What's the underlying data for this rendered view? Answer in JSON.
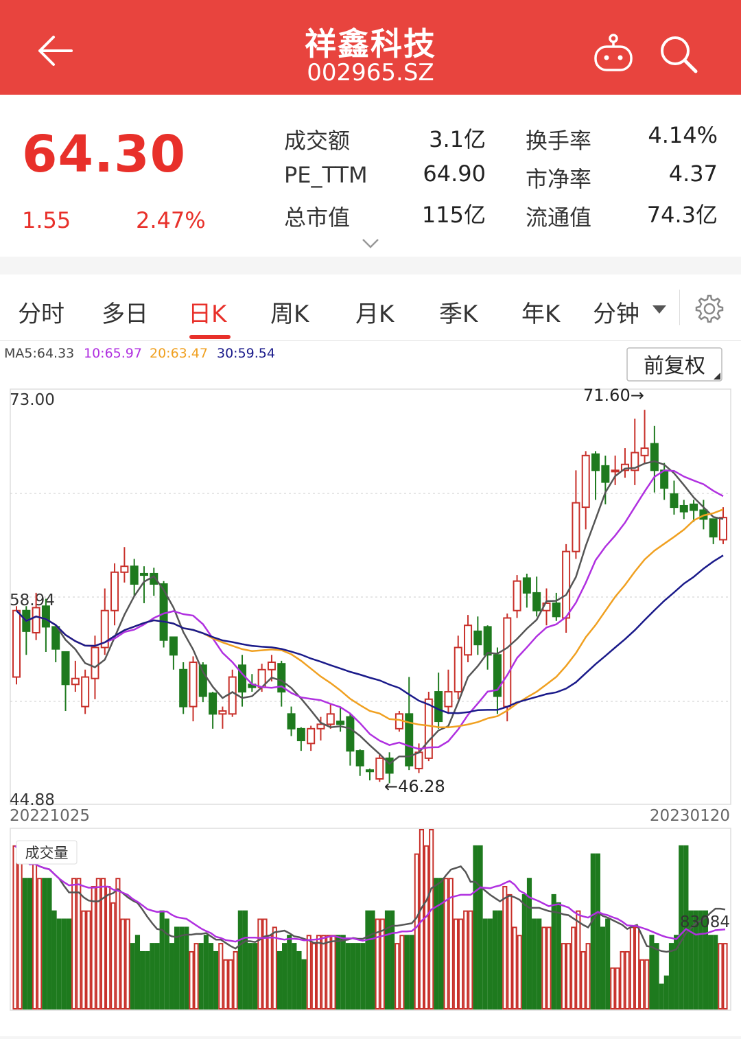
{
  "header": {
    "title": "祥鑫科技",
    "code": "002965.SZ"
  },
  "quote": {
    "price": "64.30",
    "change": "1.55",
    "change_pct": "2.47%",
    "stats": [
      {
        "label": "成交额",
        "value": "3.1亿"
      },
      {
        "label": "换手率",
        "value": "4.14%"
      },
      {
        "label": "PE_TTM",
        "value": "64.90"
      },
      {
        "label": "市净率",
        "value": "4.37"
      },
      {
        "label": "总市值",
        "value": "115亿"
      },
      {
        "label": "流通值",
        "value": "74.3亿"
      }
    ]
  },
  "tabs": [
    {
      "label": "分时"
    },
    {
      "label": "多日"
    },
    {
      "label": "日K"
    },
    {
      "label": "周K"
    },
    {
      "label": "月K"
    },
    {
      "label": "季K"
    },
    {
      "label": "年K"
    },
    {
      "label": "分钟"
    }
  ],
  "colors": {
    "up": "#c8302a",
    "down": "#1e7a1e",
    "ma5": "#555555",
    "ma10": "#b030e0",
    "ma20": "#f0a020",
    "ma30": "#1a1a8a"
  },
  "chart_data": {
    "type": "candlestick",
    "ma_legend": [
      {
        "label": "MA5:64.33",
        "color": "#444444"
      },
      {
        "label": "10:65.97",
        "color": "#b030e0"
      },
      {
        "label": "20:63.47",
        "color": "#f0a020"
      },
      {
        "label": "30:59.54",
        "color": "#1a1a8a"
      }
    ],
    "adjust_button": "前复权",
    "y_ticks": [
      "73.00",
      "58.94",
      "44.88"
    ],
    "ylim": [
      44.88,
      73.0
    ],
    "x_start": "20221025",
    "x_end": "20230120",
    "max_label": "71.60→",
    "min_label": "←46.28",
    "volume_title": "成交量",
    "volume_label": "83084",
    "candles": [
      [
        53.5,
        58.0,
        58.3,
        53.0
      ],
      [
        58.0,
        56.6,
        58.3,
        55.0
      ],
      [
        56.5,
        58.2,
        59.2,
        56.0
      ],
      [
        58.3,
        56.9,
        58.8,
        55.2
      ],
      [
        56.9,
        55.4,
        56.5,
        54.5
      ],
      [
        55.2,
        53.0,
        53.5,
        51.2
      ],
      [
        53.0,
        53.4,
        54.6,
        52.5
      ],
      [
        51.5,
        53.5,
        54.0,
        51.0
      ],
      [
        53.4,
        55.5,
        56.3,
        52.0
      ],
      [
        55.5,
        58.0,
        59.5,
        55.0
      ],
      [
        58.0,
        60.6,
        61.2,
        57.0
      ],
      [
        60.6,
        61.0,
        62.3,
        59.9
      ],
      [
        61.0,
        59.8,
        61.5,
        59.0
      ],
      [
        60.5,
        60.4,
        61.0,
        58.5
      ],
      [
        60.5,
        59.8,
        60.9,
        59.0
      ],
      [
        59.8,
        56.0,
        60.0,
        55.5
      ],
      [
        56.2,
        55.0,
        56.2,
        54.0
      ],
      [
        54.0,
        51.5,
        54.5,
        51.0
      ],
      [
        51.5,
        54.5,
        54.9,
        50.5
      ],
      [
        54.3,
        52.2,
        54.5,
        51.8
      ],
      [
        52.4,
        51.0,
        52.5,
        50.0
      ],
      [
        51.0,
        51.2,
        51.5,
        50.0
      ],
      [
        51.0,
        53.5,
        54.0,
        50.8
      ],
      [
        54.3,
        52.5,
        55.0,
        51.5
      ],
      [
        53.0,
        52.8,
        53.7,
        52.5
      ],
      [
        52.8,
        54.0,
        54.4,
        52.5
      ],
      [
        54.0,
        54.5,
        55.0,
        53.2
      ],
      [
        54.4,
        52.5,
        54.6,
        51.5
      ],
      [
        51.0,
        50.0,
        51.5,
        49.5
      ],
      [
        50.0,
        49.2,
        50.1,
        48.5
      ],
      [
        49.0,
        50.0,
        50.2,
        48.5
      ],
      [
        50.0,
        50.3,
        50.8,
        49.2
      ],
      [
        50.3,
        51.0,
        51.7,
        50.0
      ],
      [
        50.5,
        50.3,
        51.5,
        49.8
      ],
      [
        50.8,
        48.5,
        51.0,
        47.5
      ],
      [
        48.5,
        47.5,
        48.6,
        46.8
      ],
      [
        47.2,
        47.1,
        47.3,
        46.5
      ],
      [
        46.6,
        48.0,
        48.3,
        46.4
      ],
      [
        48.0,
        47.0,
        48.4,
        46.3
      ],
      [
        50.0,
        51.0,
        51.2,
        49.8
      ],
      [
        51.0,
        47.5,
        53.5,
        47.2
      ],
      [
        47.3,
        48.4,
        49.0,
        47.0
      ],
      [
        48.0,
        52.0,
        52.5,
        47.8
      ],
      [
        52.5,
        50.5,
        53.8,
        50.0
      ],
      [
        51.5,
        52.5,
        54.0,
        51.0
      ],
      [
        52.5,
        55.5,
        56.3,
        52.0
      ],
      [
        55.0,
        57.0,
        57.7,
        54.5
      ],
      [
        56.6,
        55.7,
        57.6,
        55.0
      ],
      [
        56.9,
        55.0,
        57.0,
        54.0
      ],
      [
        55.0,
        52.2,
        55.5,
        51.0
      ],
      [
        51.5,
        57.5,
        57.8,
        50.5
      ],
      [
        58.0,
        60.0,
        60.4,
        57.5
      ],
      [
        60.2,
        59.2,
        60.5,
        58.2
      ],
      [
        59.2,
        58.0,
        60.3,
        57.6
      ],
      [
        58.0,
        58.5,
        59.5,
        57.0
      ],
      [
        58.5,
        57.6,
        59.2,
        57.3
      ],
      [
        57.5,
        62.0,
        62.5,
        56.5
      ],
      [
        62.0,
        65.3,
        67.5,
        61.5
      ],
      [
        65.0,
        68.5,
        68.8,
        63.5
      ],
      [
        68.6,
        67.5,
        68.8,
        65.5
      ],
      [
        67.8,
        66.7,
        68.5,
        65.2
      ],
      [
        67.5,
        67.5,
        68.5,
        66.5
      ],
      [
        67.5,
        67.9,
        69.0,
        67.0
      ],
      [
        67.5,
        68.7,
        71.0,
        66.5
      ],
      [
        68.5,
        69.0,
        71.6,
        68.0
      ],
      [
        69.3,
        67.5,
        70.5,
        66.0
      ],
      [
        67.5,
        66.3,
        68.0,
        65.5
      ],
      [
        65.9,
        65.0,
        66.8,
        64.5
      ],
      [
        65.1,
        64.7,
        65.5,
        64.2
      ],
      [
        65.2,
        64.8,
        65.5,
        64.0
      ],
      [
        64.8,
        64.2,
        65.5,
        63.5
      ],
      [
        64.2,
        63.0,
        64.2,
        62.5
      ],
      [
        62.8,
        64.3,
        65.0,
        62.5
      ]
    ],
    "volume": [
      [
        100,
        95
      ],
      [
        80,
        80
      ],
      [
        90,
        80
      ],
      [
        80,
        80
      ],
      [
        60,
        55
      ],
      [
        55,
        55
      ],
      [
        80,
        80
      ],
      [
        60,
        60
      ],
      [
        75,
        80
      ],
      [
        80,
        75
      ],
      [
        65,
        80
      ],
      [
        55,
        55
      ],
      [
        40,
        45
      ],
      [
        35,
        35
      ],
      [
        40,
        40
      ],
      [
        60,
        55
      ],
      [
        40,
        50
      ],
      [
        50,
        50
      ],
      [
        35,
        40
      ],
      [
        40,
        45
      ],
      [
        40,
        35
      ],
      [
        40,
        30
      ],
      [
        30,
        35
      ],
      [
        60,
        60
      ],
      [
        40,
        40
      ],
      [
        55,
        55
      ],
      [
        45,
        50
      ],
      [
        35,
        40
      ],
      [
        45,
        40
      ],
      [
        35,
        30
      ],
      [
        45,
        40
      ],
      [
        45,
        45
      ],
      [
        45,
        45
      ],
      [
        45,
        45
      ],
      [
        40,
        40
      ],
      [
        40,
        40
      ],
      [
        60,
        60
      ],
      [
        55,
        55
      ],
      [
        60,
        60
      ],
      [
        40,
        45
      ],
      [
        45,
        45
      ],
      [
        95,
        120
      ],
      [
        100,
        130
      ],
      [
        80,
        80
      ],
      [
        80,
        80
      ],
      [
        55,
        55
      ],
      [
        60,
        60
      ],
      [
        100,
        100
      ],
      [
        55,
        55
      ],
      [
        60,
        60
      ],
      [
        75,
        70
      ],
      [
        50,
        45
      ],
      [
        70,
        80
      ],
      [
        55,
        55
      ],
      [
        50,
        50
      ],
      [
        70,
        65
      ],
      [
        40,
        40
      ],
      [
        50,
        60
      ],
      [
        35,
        40
      ],
      [
        95,
        95
      ],
      [
        50,
        55
      ],
      [
        25,
        25
      ],
      [
        35,
        35
      ],
      [
        50,
        50
      ],
      [
        30,
        30
      ],
      [
        45,
        40
      ],
      [
        15,
        20
      ],
      [
        40,
        45
      ],
      [
        100,
        100
      ],
      [
        60,
        60
      ],
      [
        60,
        60
      ],
      [
        45,
        45
      ],
      [
        40,
        40
      ]
    ],
    "volume_max": 110
  }
}
